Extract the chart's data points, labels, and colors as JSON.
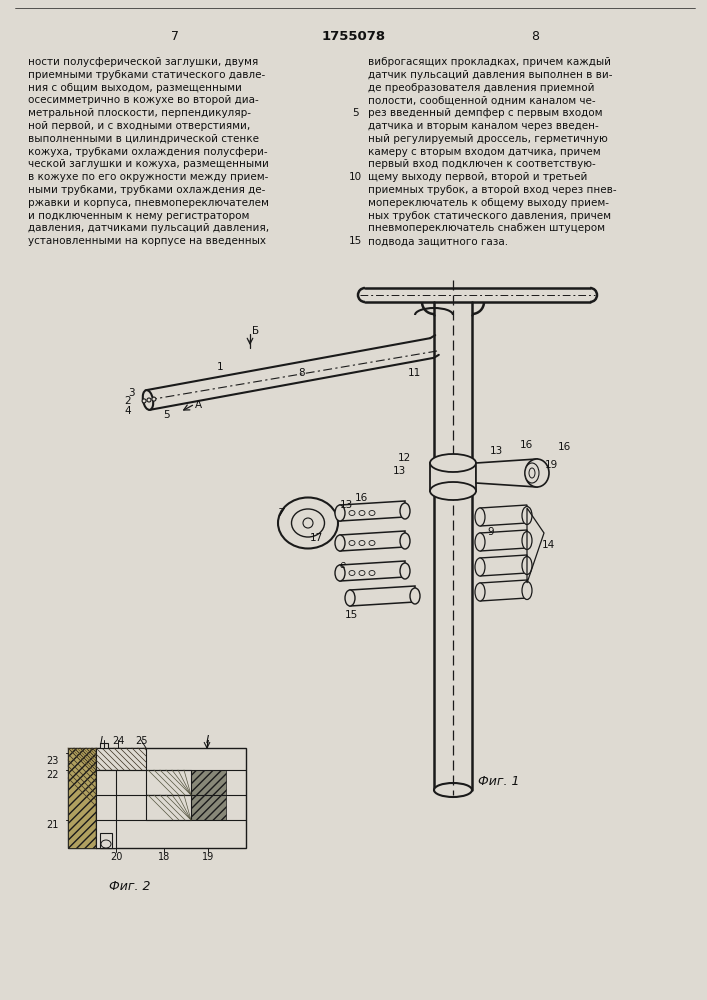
{
  "page_number_left": "7",
  "patent_number": "1755078",
  "page_number_right": "8",
  "text_left": "ности полусферической заглушки, двумя\nприемными трубками статического давле-\nния с общим выходом, размещенными\nосесимметрично в кожухе во второй диа-\nметральной плоскости, перпендикуляр-\nной первой, и с входными отверстиями,\nвыполненными в цилиндрической стенке\nкожуха, трубками охлаждения полусфери-\nческой заглушки и кожуха, размещенными\nв кожухе по его окружности между прием-\nными трубками, трубками охлаждения де-\nржавки и корпуса, пневмопереключателем\nи подключенным к нему регистратором\nдавления, датчиками пульсаций давления,\nустановленными на корпусе на введенных",
  "text_right": "виброгасящих прокладках, причем каждый\nдатчик пульсаций давления выполнен в ви-\nде преобразователя давления приемной\nполости, сообщенной одним каналом че-\nрез введенный демпфер с первым входом\nдатчика и вторым каналом через введен-\nный регулируемый дроссель, герметичную\nкамеру с вторым входом датчика, причем\nпервый вход подключен к соответствую-\nщему выходу первой, второй и третьей\nприемных трубок, а второй вход через пнев-\nмопереключатель к общему выходу прием-\nных трубок статического давления, причем\nпневмопереключатель снабжен штуцером\nподвода защитного газа.",
  "fig1_caption": "Фиг. 1",
  "fig2_caption": "Фиг. 2",
  "bg_color": "#dedad2",
  "text_color": "#111111",
  "line_color": "#1a1a1a"
}
